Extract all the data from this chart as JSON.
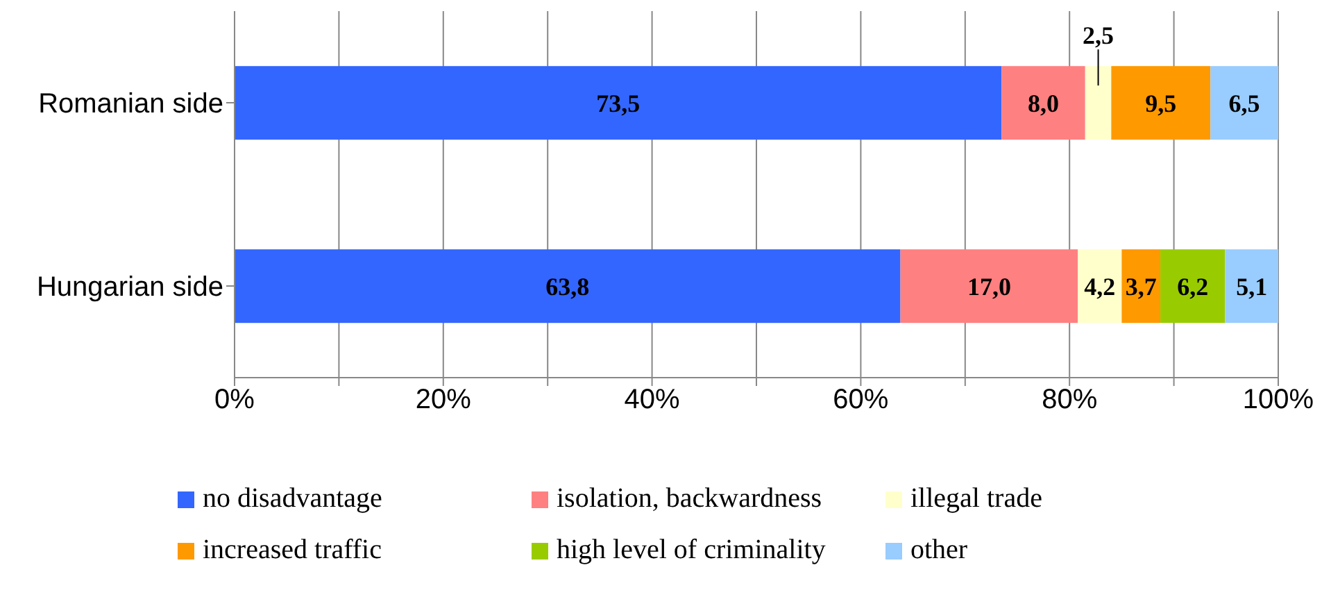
{
  "chart_data": {
    "type": "bar",
    "orientation": "horizontal",
    "stacked": true,
    "categories": [
      "Romanian side",
      "Hungarian side"
    ],
    "series": [
      {
        "name": "no disadvantage",
        "color": "#3366ff",
        "values": [
          73.5,
          63.8
        ],
        "value_labels": [
          "73,5",
          "63,8"
        ]
      },
      {
        "name": "isolation, backwardness",
        "color": "#ff8080",
        "values": [
          8.0,
          17.0
        ],
        "value_labels": [
          "8,0",
          "17,0"
        ]
      },
      {
        "name": "illegal trade",
        "color": "#ffffcc",
        "values": [
          2.5,
          4.2
        ],
        "value_labels": [
          "2,5",
          "4,2"
        ]
      },
      {
        "name": "increased traffic",
        "color": "#ff9900",
        "values": [
          9.5,
          3.7
        ],
        "value_labels": [
          "9,5",
          "3,7"
        ]
      },
      {
        "name": "high level of criminality",
        "color": "#99cc00",
        "values": [
          null,
          6.2
        ],
        "value_labels": [
          null,
          "6,2"
        ]
      },
      {
        "name": "other",
        "color": "#99ccff",
        "values": [
          6.5,
          5.1
        ],
        "value_labels": [
          "6,5",
          "5,1"
        ]
      }
    ],
    "xlim": [
      0,
      100
    ],
    "xticks": [
      {
        "value": 0,
        "label": "0%"
      },
      {
        "value": 10,
        "label": null
      },
      {
        "value": 20,
        "label": "20%"
      },
      {
        "value": 30,
        "label": null
      },
      {
        "value": 40,
        "label": "40%"
      },
      {
        "value": 50,
        "label": null
      },
      {
        "value": 60,
        "label": "60%"
      },
      {
        "value": 70,
        "label": null
      },
      {
        "value": 80,
        "label": "80%"
      },
      {
        "value": 90,
        "label": null
      },
      {
        "value": 100,
        "label": "100%"
      }
    ],
    "grid": "x",
    "legend": "bottom"
  }
}
